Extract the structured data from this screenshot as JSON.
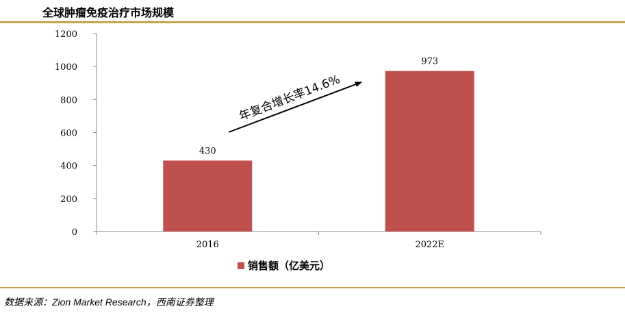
{
  "header": {
    "title": "全球肿瘤免疫治疗市场规模"
  },
  "footer": {
    "source": "数据来源：Zion Market Research，西南证券整理"
  },
  "chart_data": {
    "type": "bar",
    "categories": [
      "2016",
      "2022E"
    ],
    "series": [
      {
        "name": "销售额（亿美元）",
        "values": [
          430,
          973
        ],
        "color": "#c0504d"
      }
    ],
    "ylim": [
      0,
      1200
    ],
    "yticks": [
      0,
      200,
      400,
      600,
      800,
      1000,
      1200
    ],
    "data_labels": [
      "430",
      "973"
    ],
    "annotation": "年复合增长率14.6%",
    "legend_position": "bottom",
    "grid": false
  }
}
